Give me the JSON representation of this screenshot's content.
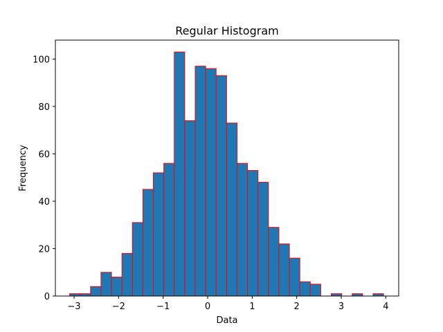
{
  "chart_data": {
    "type": "bar",
    "title": "Regular Histogram",
    "xlabel": "Data",
    "ylabel": "Frequency",
    "xlim": [
      -3.42,
      4.29
    ],
    "ylim": [
      0,
      108
    ],
    "grid": false,
    "bin_start": -3.1,
    "bin_width": 0.235,
    "values": [
      1,
      1,
      4,
      10,
      8,
      18,
      31,
      45,
      52,
      56,
      103,
      74,
      97,
      96,
      93,
      73,
      56,
      53,
      48,
      29,
      22,
      16,
      6,
      5,
      0,
      1,
      0,
      1,
      0,
      1
    ],
    "x_ticks": [
      {
        "value": -3,
        "label": "−3"
      },
      {
        "value": -2,
        "label": "−2"
      },
      {
        "value": -1,
        "label": "−1"
      },
      {
        "value": 0,
        "label": "0"
      },
      {
        "value": 1,
        "label": "1"
      },
      {
        "value": 2,
        "label": "2"
      },
      {
        "value": 3,
        "label": "3"
      },
      {
        "value": 4,
        "label": "4"
      }
    ],
    "y_ticks": [
      {
        "value": 0,
        "label": "0"
      },
      {
        "value": 20,
        "label": "20"
      },
      {
        "value": 40,
        "label": "40"
      },
      {
        "value": 60,
        "label": "60"
      },
      {
        "value": 80,
        "label": "80"
      },
      {
        "value": 100,
        "label": "100"
      }
    ],
    "colors": {
      "bar_fill": "#1f77b4",
      "bar_edge": "#ff0000",
      "axis": "#000000"
    }
  }
}
